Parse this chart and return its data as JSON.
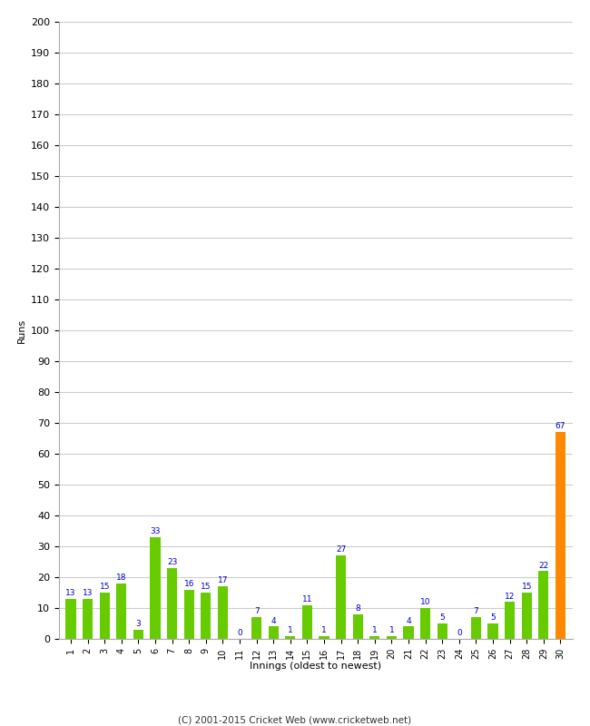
{
  "values": [
    13,
    13,
    15,
    18,
    3,
    33,
    23,
    16,
    15,
    17,
    0,
    7,
    4,
    1,
    11,
    1,
    27,
    8,
    1,
    1,
    4,
    10,
    5,
    0,
    7,
    5,
    12,
    15,
    22,
    67
  ],
  "labels": [
    "1",
    "2",
    "3",
    "4",
    "5",
    "6",
    "7",
    "8",
    "9",
    "10",
    "11",
    "12",
    "13",
    "14",
    "15",
    "16",
    "17",
    "18",
    "19",
    "20",
    "21",
    "22",
    "23",
    "24",
    "25",
    "26",
    "27",
    "28",
    "29",
    "30"
  ],
  "bar_colors": [
    "#66cc00",
    "#66cc00",
    "#66cc00",
    "#66cc00",
    "#66cc00",
    "#66cc00",
    "#66cc00",
    "#66cc00",
    "#66cc00",
    "#66cc00",
    "#66cc00",
    "#66cc00",
    "#66cc00",
    "#66cc00",
    "#66cc00",
    "#66cc00",
    "#66cc00",
    "#66cc00",
    "#66cc00",
    "#66cc00",
    "#66cc00",
    "#66cc00",
    "#66cc00",
    "#66cc00",
    "#66cc00",
    "#66cc00",
    "#66cc00",
    "#66cc00",
    "#66cc00",
    "#ff8800"
  ],
  "xlabel": "Innings (oldest to newest)",
  "ylabel": "Runs",
  "ylim": [
    0,
    200
  ],
  "yticks": [
    0,
    10,
    20,
    30,
    40,
    50,
    60,
    70,
    80,
    90,
    100,
    110,
    120,
    130,
    140,
    150,
    160,
    170,
    180,
    190,
    200
  ],
  "annotation_color": "#0000cc",
  "background_color": "#ffffff",
  "grid_color": "#cccccc",
  "footer": "(C) 2001-2015 Cricket Web (www.cricketweb.net)"
}
